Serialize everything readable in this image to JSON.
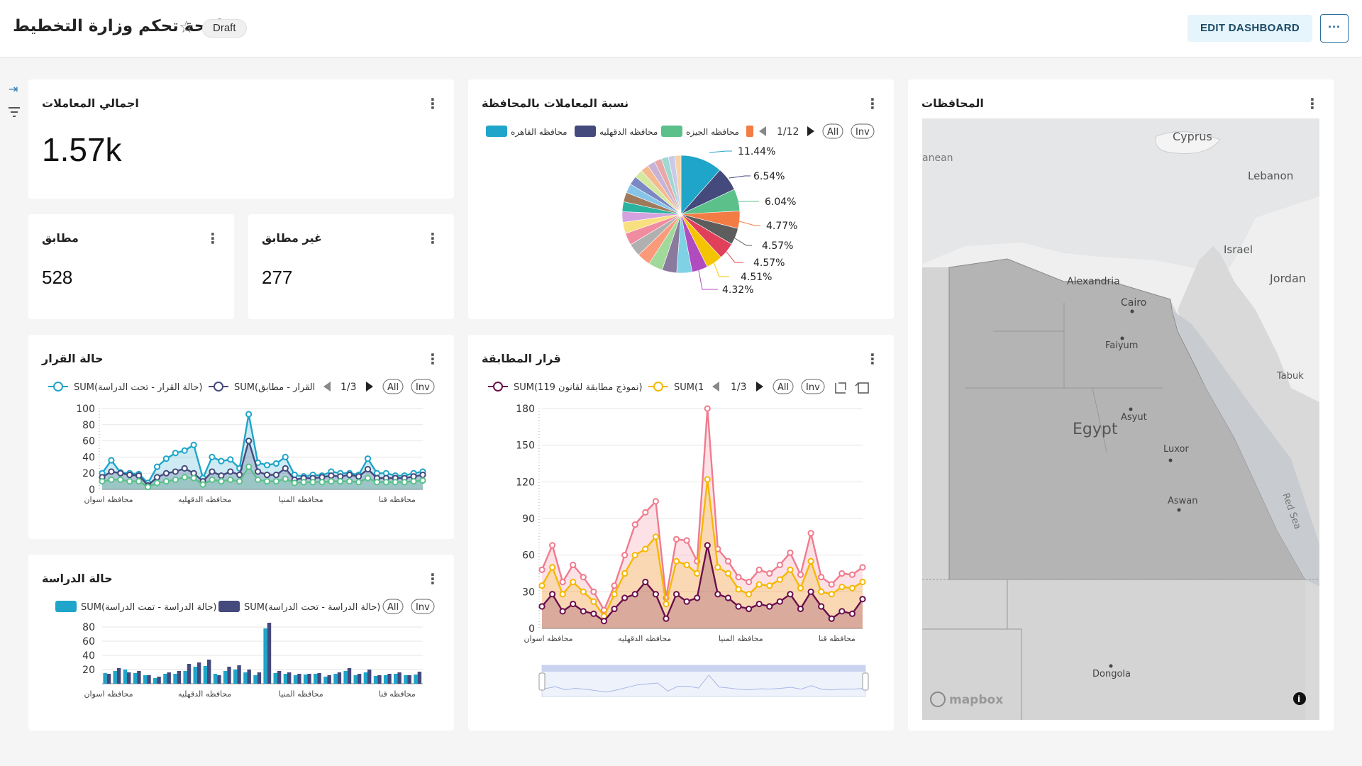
{
  "header": {
    "title": "لوحة تحكم وزارة التخطيط",
    "draft": "Draft",
    "edit": "EDIT DASHBOARD",
    "more": "···"
  },
  "cards": {
    "total": {
      "title": "اجمالي المعاملات",
      "value": "1.57k"
    },
    "matched": {
      "title": "مطابق",
      "value": "528"
    },
    "unmatched": {
      "title": "غير مطابق",
      "value": "277"
    }
  },
  "pie": {
    "title": "نسبة المعاملات بالمحافظة",
    "legend": [
      {
        "name": "محافظه القاهره",
        "color": "#1fa5c9"
      },
      {
        "name": "محافظه الدقهليه",
        "color": "#444a7c"
      },
      {
        "name": "محافظه الجيزه",
        "color": "#5bc08a"
      },
      {
        "name": "",
        "color": "#f37c45"
      }
    ],
    "pager": "1/12",
    "all": "All",
    "inv": "Inv",
    "labels": [
      "11.44%",
      "6.54%",
      "6.04%",
      "4.77%",
      "4.57%",
      "4.57%",
      "4.51%",
      "4.32%"
    ]
  },
  "map": {
    "title": "المحافظات",
    "places": {
      "cyprus": "Cyprus",
      "lebanon": "Lebanon",
      "israel": "Israel",
      "jordan": "Jordan",
      "alexandria": "Alexandria",
      "cairo": "Cairo",
      "faiyum": "Faiyum",
      "tabuk": "Tabuk",
      "egypt": "Egypt",
      "asyut": "Asyut",
      "luxor": "Luxor",
      "aswan": "Aswan",
      "redsea": "Red Sea",
      "dongola": "Dongola",
      "sea": "anean"
    },
    "attribution": "mapbox",
    "info": "i"
  },
  "decision": {
    "title": "حالة القرار",
    "legend": [
      {
        "name": "SUM(حالة القرار - تحت الدراسة)",
        "color": "#1fa5c9"
      },
      {
        "name": "SUM(القرار - مطابق",
        "color": "#444a7c"
      }
    ],
    "pager": "1/3",
    "all": "All",
    "inv": "Inv",
    "yticks": [
      "100",
      "80",
      "60",
      "40",
      "20",
      "0"
    ],
    "xticks": [
      "محافظه اسوان",
      "محافظه الدقهليه",
      "محافظه المنيا",
      "محافظه قنا"
    ]
  },
  "matching": {
    "title": "قرار المطابقة",
    "legend": [
      {
        "name": "SUM(119 نموذج مطابقة لقانون)",
        "color": "#6b0f4d"
      },
      {
        "name": "SUM(1",
        "color": "#f5b800"
      }
    ],
    "pager": "1/3",
    "all": "All",
    "inv": "Inv",
    "yticks": [
      "180",
      "150",
      "120",
      "90",
      "60",
      "30",
      "0"
    ],
    "xticks": [
      "محافظه اسوان",
      "محافظه الدقهليه",
      "محافظه المنيا",
      "محافظه قنا"
    ]
  },
  "study": {
    "title": "حالة الدراسة",
    "legend": [
      {
        "name": "SUM(حالة الدراسة - تمت الدراسة)",
        "color": "#1fa5c9"
      },
      {
        "name": "SUM(حالة الدراسة - تحت الدراسة)",
        "color": "#444a7c"
      }
    ],
    "all": "All",
    "inv": "Inv",
    "yticks": [
      "80",
      "60",
      "40",
      "20"
    ],
    "xticks": [
      "محافظه اسوان",
      "محافظه الدقهليه",
      "محافظه المنيا",
      "محافظه قنا"
    ]
  },
  "chart_data": [
    {
      "type": "pie",
      "title": "نسبة المعاملات بالمحافظة",
      "slices": [
        {
          "name": "محافظه القاهره",
          "value": 11.44
        },
        {
          "name": "محافظه الدقهليه",
          "value": 6.54
        },
        {
          "name": "محافظه الجيزه",
          "value": 6.04
        },
        {
          "name": "",
          "value": 4.77
        },
        {
          "name": "",
          "value": 4.57
        },
        {
          "name": "",
          "value": 4.57
        },
        {
          "name": "",
          "value": 4.51
        },
        {
          "name": "",
          "value": 4.32
        },
        {
          "name": "",
          "value": 4.2
        },
        {
          "name": "",
          "value": 4.0
        },
        {
          "name": "",
          "value": 3.9
        },
        {
          "name": "",
          "value": 3.7
        },
        {
          "name": "",
          "value": 3.5
        },
        {
          "name": "",
          "value": 3.3
        },
        {
          "name": "",
          "value": 3.1
        },
        {
          "name": "",
          "value": 2.9
        },
        {
          "name": "",
          "value": 2.7
        },
        {
          "name": "",
          "value": 2.6
        },
        {
          "name": "",
          "value": 2.5
        },
        {
          "name": "",
          "value": 2.4
        },
        {
          "name": "",
          "value": 2.3
        },
        {
          "name": "",
          "value": 2.2
        },
        {
          "name": "",
          "value": 2.1
        },
        {
          "name": "",
          "value": 2.0
        },
        {
          "name": "",
          "value": 1.9
        },
        {
          "name": "",
          "value": 1.8
        },
        {
          "name": "",
          "value": 1.7
        }
      ],
      "colors": [
        "#1fa5c9",
        "#444a7c",
        "#5bc08a",
        "#f37c45",
        "#5d5d5d",
        "#e0405a",
        "#f5c400",
        "#b04cc0",
        "#7fd1e4",
        "#8a7a9e",
        "#a1d99b",
        "#fb9a7a",
        "#b0b0b0",
        "#f08ca0",
        "#f9e07f",
        "#d5a2e0",
        "#2bb3a0",
        "#9e7a5a",
        "#86c5e8",
        "#7b88c4",
        "#d4e79e",
        "#f5b98f",
        "#c7b3d6",
        "#e8a8a8",
        "#9fd8d0",
        "#c9c9e8",
        "#f6d2a8"
      ]
    },
    {
      "type": "area",
      "title": "حالة القرار",
      "ylim": [
        0,
        100
      ],
      "series": [
        {
          "name": "SUM(حالة القرار - تحت الدراسة)",
          "color": "#1fa5c9",
          "values": [
            20,
            36,
            21,
            20,
            19,
            8,
            28,
            38,
            45,
            48,
            55,
            14,
            40,
            35,
            37,
            26,
            93,
            33,
            30,
            32,
            40,
            18,
            16,
            18,
            17,
            22,
            20,
            20,
            18,
            38,
            20,
            20,
            17,
            17,
            20,
            22
          ]
        },
        {
          "name": "SUM(القرار - مطابق",
          "color": "#444a7c",
          "values": [
            15,
            22,
            20,
            18,
            17,
            5,
            15,
            20,
            22,
            26,
            20,
            10,
            22,
            17,
            22,
            18,
            60,
            22,
            18,
            18,
            26,
            12,
            14,
            14,
            15,
            17,
            16,
            18,
            16,
            25,
            14,
            14,
            14,
            14,
            16,
            18
          ]
        },
        {
          "name": "",
          "color": "#5bc08a",
          "values": [
            10,
            12,
            12,
            10,
            10,
            3,
            8,
            10,
            12,
            15,
            14,
            6,
            12,
            10,
            12,
            10,
            28,
            12,
            10,
            10,
            13,
            8,
            9,
            9,
            9,
            10,
            10,
            10,
            9,
            14,
            9,
            9,
            9,
            9,
            10,
            11
          ]
        }
      ],
      "categories": [
        "محافظه اسوان",
        "",
        "",
        "",
        "",
        "",
        "",
        "",
        "",
        "محافظه الدقهليه",
        "",
        "",
        "",
        "",
        "",
        "",
        "",
        "",
        "",
        "",
        "محافظه المنيا",
        "",
        "",
        "",
        "",
        "",
        "",
        "",
        "",
        "",
        "",
        "محافظه قنا",
        "",
        "",
        "",
        ""
      ]
    },
    {
      "type": "area",
      "title": "قرار المطابقة",
      "ylim": [
        0,
        180
      ],
      "series": [
        {
          "name": "",
          "color": "#f07b8e",
          "values": [
            48,
            68,
            38,
            52,
            42,
            30,
            15,
            35,
            60,
            85,
            95,
            104,
            25,
            73,
            72,
            55,
            180,
            65,
            55,
            42,
            38,
            48,
            45,
            52,
            62,
            44,
            78,
            42,
            36,
            45,
            44,
            50
          ]
        },
        {
          "name": "SUM(1",
          "color": "#f5b800",
          "values": [
            35,
            50,
            28,
            38,
            30,
            22,
            10,
            28,
            45,
            60,
            65,
            75,
            20,
            55,
            52,
            45,
            122,
            50,
            45,
            32,
            28,
            36,
            35,
            40,
            48,
            33,
            55,
            30,
            28,
            34,
            33,
            38
          ]
        },
        {
          "name": "SUM(119 نموذج مطابقة لقانون)",
          "color": "#6b0f4d",
          "values": [
            18,
            28,
            14,
            20,
            14,
            12,
            6,
            16,
            25,
            28,
            38,
            28,
            8,
            28,
            22,
            25,
            68,
            28,
            25,
            18,
            16,
            20,
            18,
            22,
            28,
            16,
            30,
            18,
            8,
            14,
            12,
            24
          ]
        }
      ],
      "categories": [
        "محافظه اسوان",
        "",
        "",
        "",
        "",
        "",
        "",
        "",
        "محافظه الدقهليه",
        "",
        "",
        "",
        "",
        "",
        "",
        "",
        "محافظه المنيا",
        "",
        "",
        "",
        "",
        "",
        "",
        "",
        "محافظه قنا",
        "",
        "",
        "",
        "",
        "",
        "",
        ""
      ]
    },
    {
      "type": "bar",
      "title": "حالة الدراسة",
      "ylim": [
        0,
        100
      ],
      "series": [
        {
          "name": "SUM(حالة الدراسة - تمت الدراسة)",
          "color": "#1fa5c9",
          "values": [
            15,
            18,
            20,
            15,
            12,
            8,
            14,
            14,
            18,
            24,
            25,
            14,
            18,
            20,
            16,
            12,
            78,
            15,
            14,
            12,
            13,
            14,
            10,
            14,
            18,
            12,
            16,
            11,
            12,
            14,
            12,
            13
          ]
        },
        {
          "name": "SUM(حالة الدراسة - تحت الدراسة)",
          "color": "#444a7c",
          "values": [
            14,
            22,
            16,
            18,
            12,
            10,
            16,
            18,
            28,
            30,
            34,
            12,
            24,
            26,
            20,
            16,
            86,
            18,
            16,
            14,
            14,
            15,
            12,
            16,
            22,
            14,
            20,
            12,
            14,
            16,
            12,
            17
          ]
        }
      ],
      "categories": [
        "محافظه اسوان",
        "",
        "",
        "",
        "",
        "",
        "",
        "",
        "محافظه الدقهليه",
        "",
        "",
        "",
        "",
        "",
        "",
        "",
        "محافظه المنيا",
        "",
        "",
        "",
        "",
        "",
        "",
        "",
        "محافظه قنا",
        "",
        "",
        "",
        "",
        "",
        "",
        ""
      ]
    }
  ]
}
